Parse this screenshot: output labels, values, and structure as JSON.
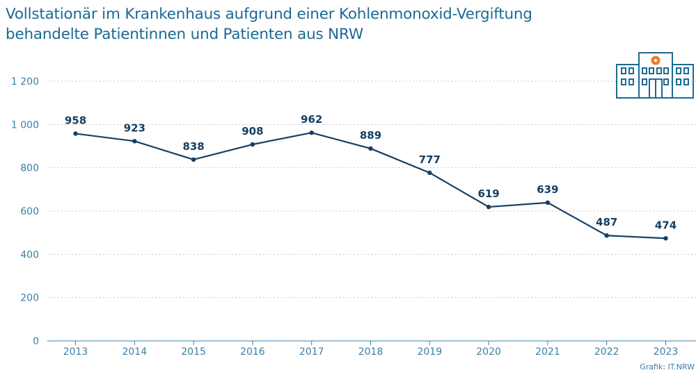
{
  "title": {
    "line1": "Vollstationär im Krankenhaus aufgrund einer Kohlenmonoxid-Vergiftung",
    "line2": "behandelte Patientinnen und Patienten aus NRW"
  },
  "credit": "Grafik: IT.NRW",
  "colors": {
    "title": "#1a6a93",
    "line": "#143f63",
    "axis_text": "#3a7fa6",
    "grid": "#c8c8c8",
    "icon": "#1a6a93",
    "icon_cross": "#f0782a"
  },
  "icon": "hospital-icon",
  "chart_data": {
    "type": "line",
    "x": [
      "2013",
      "2014",
      "2015",
      "2016",
      "2017",
      "2018",
      "2019",
      "2020",
      "2021",
      "2022",
      "2023"
    ],
    "series": [
      {
        "values": [
          958,
          923,
          838,
          908,
          962,
          889,
          777,
          619,
          639,
          487,
          474
        ]
      }
    ],
    "yticks": [
      "0",
      "200",
      "400",
      "600",
      "800",
      "1 000",
      "1 200"
    ],
    "ytick_values": [
      0,
      200,
      400,
      600,
      800,
      1000,
      1200
    ],
    "ylim": [
      0,
      1200
    ],
    "grid": "horizontal-dotted",
    "data_labels": true
  }
}
